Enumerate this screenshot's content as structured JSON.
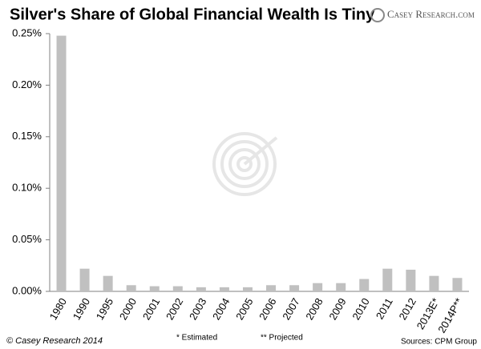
{
  "chart_data": {
    "type": "bar",
    "title": "Silver's Share of Global Financial Wealth Is Tiny",
    "logo": "Casey Research.com",
    "categories": [
      "1980",
      "1990",
      "1995",
      "2000",
      "2001",
      "2002",
      "2003",
      "2004",
      "2005",
      "2006",
      "2007",
      "2008",
      "2009",
      "2010",
      "2011",
      "2012",
      "2013E*",
      "2014P**"
    ],
    "values": [
      0.248,
      0.022,
      0.015,
      0.006,
      0.005,
      0.005,
      0.004,
      0.004,
      0.004,
      0.006,
      0.006,
      0.008,
      0.008,
      0.012,
      0.022,
      0.021,
      0.015,
      0.013
    ],
    "color": "#c0c0c0",
    "ylim": [
      0,
      0.25
    ],
    "yticks": [
      {
        "value": 0,
        "label": "0.00%"
      },
      {
        "value": 0.05,
        "label": "0.05%"
      },
      {
        "value": 0.1,
        "label": "0.10%"
      },
      {
        "value": 0.15,
        "label": "0.15%"
      },
      {
        "value": 0.2,
        "label": "0.20%"
      },
      {
        "value": 0.25,
        "label": "0.25%"
      }
    ],
    "grid": false,
    "copyright": "© Casey Research 2014",
    "annotations": [
      "* Estimated",
      "** Projected"
    ],
    "source": "Sources:  CPM Group"
  }
}
